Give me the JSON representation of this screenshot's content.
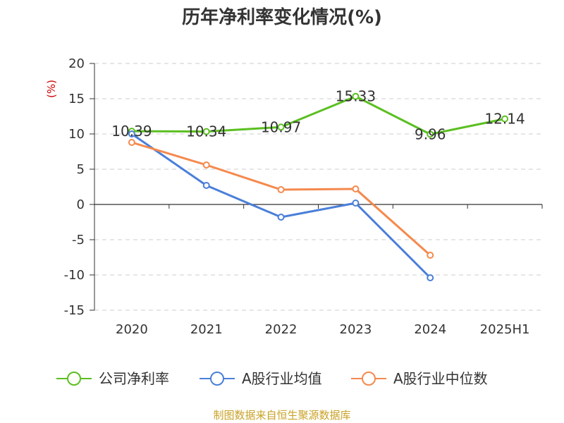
{
  "colors": {
    "text": "#333333",
    "grid": "#cccccc",
    "axis": "#333333",
    "unit_label": "#cc0000",
    "source": "#c9a227"
  },
  "source_text": "制图数据来自恒生聚源数据库",
  "chart_data": {
    "type": "line",
    "title": "历年净利率变化情况(%)",
    "ylabel": "(%)",
    "ylim": [
      -15,
      20
    ],
    "yticks": [
      20,
      15,
      10,
      5,
      0,
      -5,
      -10,
      -15
    ],
    "grid": "horizontal-dashed",
    "legend_position": "bottom",
    "categories": [
      "2020",
      "2021",
      "2022",
      "2023",
      "2024",
      "2025H1"
    ],
    "series": [
      {
        "name": "公司净利率",
        "color": "#5bbf21",
        "values": [
          10.39,
          10.34,
          10.97,
          15.33,
          9.96,
          12.14
        ],
        "data_labels": [
          "10.39",
          "10.34",
          "10.97",
          "15.33",
          "9.96",
          "12.14"
        ]
      },
      {
        "name": "A股行业均值",
        "color": "#4a7fd9",
        "values": [
          10.0,
          2.7,
          -1.8,
          0.2,
          -10.4,
          null
        ]
      },
      {
        "name": "A股行业中位数",
        "color": "#f5894d",
        "values": [
          8.8,
          5.6,
          2.1,
          2.2,
          -7.2,
          null
        ]
      }
    ]
  }
}
